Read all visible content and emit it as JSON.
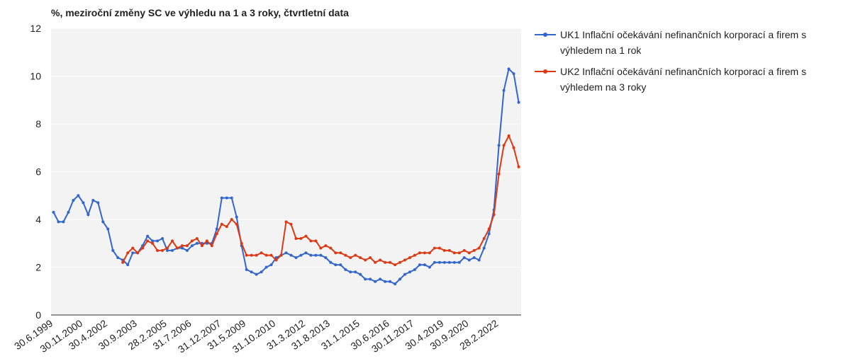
{
  "chart_data": {
    "type": "line",
    "title": "%, meziroční změny SC ve výhledu na 1 a 3 roky, čtvrtletní data",
    "categories": [
      "30.6.1999",
      null,
      null,
      null,
      null,
      null,
      "30.11.2000",
      null,
      null,
      null,
      null,
      "30.4.2002",
      null,
      null,
      null,
      null,
      null,
      "30.9.2003",
      null,
      null,
      null,
      null,
      null,
      "28.2.2005",
      null,
      null,
      null,
      null,
      "31.7.2006",
      null,
      null,
      null,
      null,
      null,
      "31.12.2007",
      null,
      null,
      null,
      null,
      "31.5.2009",
      null,
      null,
      null,
      null,
      null,
      "31.10.2010",
      null,
      null,
      null,
      null,
      null,
      "31.3.2012",
      null,
      null,
      null,
      null,
      "31.8.2013",
      null,
      null,
      null,
      null,
      null,
      "31.1.2015",
      null,
      null,
      null,
      null,
      null,
      "30.6.2016",
      null,
      null,
      null,
      null,
      "30.11.2017",
      null,
      null,
      null,
      null,
      null,
      "30.4.2019",
      null,
      null,
      null,
      null,
      "30.9.2020",
      null,
      null,
      null,
      null,
      null,
      "28.2.2022",
      null,
      null,
      null,
      null
    ],
    "series": [
      {
        "name": "UK1 Inflační očekávání nefinančních korporací a firem s výhledem na 1 rok",
        "color": "#3366cc",
        "values": [
          4.3,
          3.9,
          3.9,
          4.3,
          4.8,
          5.0,
          4.7,
          4.2,
          4.8,
          4.7,
          3.9,
          3.6,
          2.7,
          2.4,
          2.3,
          2.1,
          2.6,
          2.6,
          2.9,
          3.3,
          3.1,
          3.1,
          3.2,
          2.7,
          2.7,
          2.8,
          2.8,
          2.7,
          2.9,
          3.0,
          3.0,
          3.0,
          3.0,
          3.6,
          4.9,
          4.9,
          4.9,
          4.1,
          2.9,
          1.9,
          1.8,
          1.7,
          1.8,
          2.0,
          2.1,
          2.4,
          2.5,
          2.6,
          2.5,
          2.4,
          2.5,
          2.6,
          2.5,
          2.5,
          2.5,
          2.4,
          2.2,
          2.1,
          2.1,
          1.9,
          1.8,
          1.8,
          1.7,
          1.5,
          1.5,
          1.4,
          1.5,
          1.4,
          1.4,
          1.3,
          1.5,
          1.7,
          1.8,
          1.9,
          2.1,
          2.1,
          2.0,
          2.2,
          2.2,
          2.2,
          2.2,
          2.2,
          2.2,
          2.4,
          2.3,
          2.4,
          2.3,
          2.8,
          3.4,
          4.4,
          7.1,
          9.4,
          10.3,
          10.1,
          8.9
        ]
      },
      {
        "name": "UK2 Inflační očekávání nefinančních korporací a firem s výhledem na 3 roky",
        "color": "#dc3912",
        "values": [
          null,
          null,
          null,
          null,
          null,
          null,
          null,
          null,
          null,
          null,
          null,
          null,
          null,
          null,
          2.2,
          2.6,
          2.8,
          2.6,
          2.8,
          3.1,
          3.0,
          2.7,
          2.7,
          2.8,
          3.1,
          2.8,
          2.9,
          2.9,
          3.1,
          3.2,
          2.9,
          3.1,
          2.9,
          3.4,
          3.8,
          3.7,
          4.0,
          3.8,
          3.0,
          2.5,
          2.5,
          2.5,
          2.6,
          2.5,
          2.5,
          2.3,
          2.5,
          3.9,
          3.8,
          3.2,
          3.2,
          3.3,
          3.1,
          3.1,
          2.8,
          2.9,
          2.8,
          2.6,
          2.6,
          2.5,
          2.4,
          2.5,
          2.4,
          2.3,
          2.4,
          2.2,
          2.3,
          2.2,
          2.2,
          2.1,
          2.2,
          2.3,
          2.4,
          2.5,
          2.6,
          2.6,
          2.6,
          2.8,
          2.8,
          2.7,
          2.7,
          2.6,
          2.6,
          2.7,
          2.6,
          2.7,
          2.8,
          3.2,
          3.6,
          4.2,
          5.9,
          7.1,
          7.5,
          7.0,
          6.2
        ]
      }
    ],
    "ylim": [
      0,
      12
    ],
    "yticks": [
      0,
      2,
      4,
      6,
      8,
      10,
      12
    ],
    "grid": true,
    "legend": "right"
  }
}
